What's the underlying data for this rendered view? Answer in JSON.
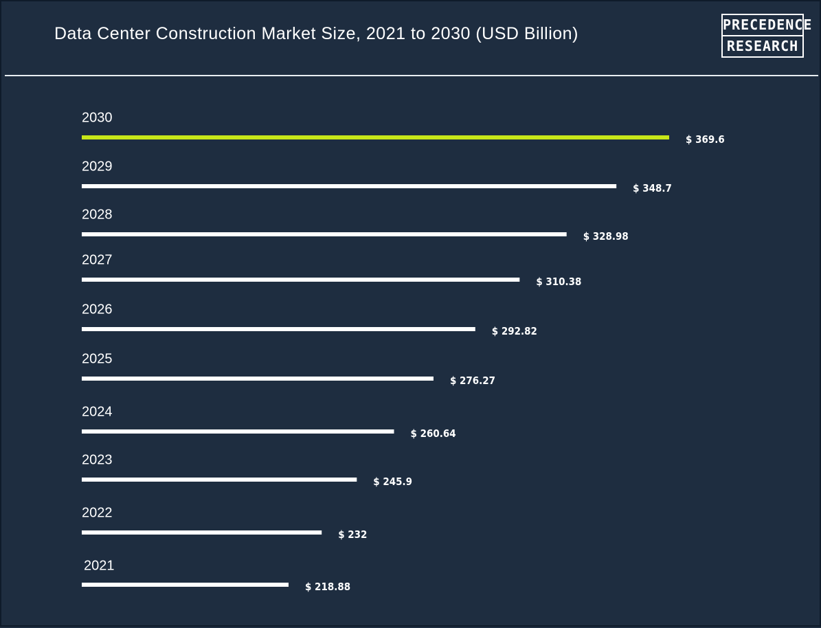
{
  "header": {
    "title": "Data Center Construction Market Size, 2021 to 2030 (USD Billion)",
    "logo_line1": "PRECEDENCE",
    "logo_line2": "RESEARCH"
  },
  "colors": {
    "background": "#1e2d40",
    "bar_default": "#ffffff",
    "bar_highlight": "#c8e619",
    "text": "#ffffff"
  },
  "chart_data": {
    "type": "bar",
    "orientation": "horizontal",
    "title": "Data Center Construction Market Size, 2021 to 2030 (USD Billion)",
    "categories": [
      "2030",
      "2029",
      "2028",
      "2027",
      "2026",
      "2025",
      "2024",
      "2023",
      "2022",
      "2021"
    ],
    "values": [
      369.6,
      348.7,
      328.98,
      310.38,
      292.82,
      276.27,
      260.64,
      245.9,
      232,
      218.88
    ],
    "value_labels": [
      "$ 369.6",
      "$ 348.7",
      "$ 328.98",
      "$ 310.38",
      "$ 292.82",
      "$ 276.27",
      "$ 260.64",
      "$ 245.9",
      "$ 232",
      "$ 218.88"
    ],
    "highlight_category": "2030",
    "grid": false
  }
}
